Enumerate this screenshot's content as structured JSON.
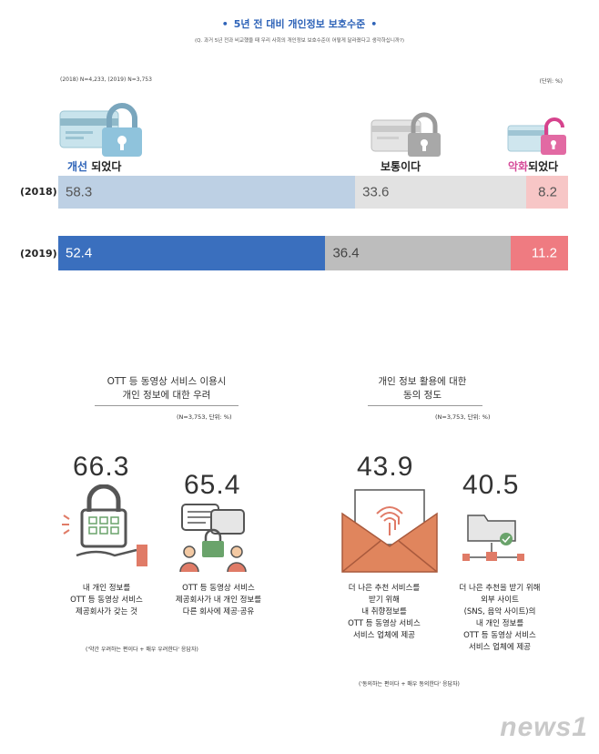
{
  "header": {
    "title": "5년 전 대비 개인정보 보호수준",
    "subtitle": "(Q. 과거 5년 전과 비교했을 때 우리 사회의 개인정보 보호수준이 어떻게 달라졌다고 생각하십니까?)",
    "sample_note": "(2018) N=4,233, (2019) N=3,753",
    "unit_note": "(단위: %)"
  },
  "labels": {
    "improved_hl": "개선",
    "improved_rest": " 되었다",
    "same": "보통이다",
    "worse_hl": "악화",
    "worse_rest": "되었다"
  },
  "chart_data": [
    {
      "type": "bar",
      "orientation": "horizontal-stacked-100",
      "title": "5년 전 대비 개인정보 보호수준",
      "categories": [
        "(2018)",
        "(2019)"
      ],
      "series": [
        {
          "name": "개선 되었다",
          "values": [
            58.3,
            52.4
          ]
        },
        {
          "name": "보통이다",
          "values": [
            33.6,
            36.4
          ]
        },
        {
          "name": "악화되었다",
          "values": [
            8.2,
            11.2
          ]
        }
      ],
      "unit": "%"
    },
    {
      "type": "bar",
      "title": "OTT 등 동영상 서비스 이용시 개인 정보에 대한 우려",
      "categories": [
        "내 개인 정보를 OTT 등 동영상 서비스 제공회사가 갖는 것",
        "OTT 등 동영상 서비스 제공회사가 내 개인 정보를 다른 회사에 제공·공유"
      ],
      "values": [
        66.3,
        65.4
      ]
    },
    {
      "type": "bar",
      "title": "개인 정보 활용에 대한 동의 정도",
      "categories": [
        "더 나은 추천 서비스를 받기 위해 내 취향정보를 OTT 등 동영상 서비스 서비스 업체에 제공",
        "더 나은 추천을 받기 위해 외부 사이트 (SNS, 음악 사이트)의 내 개인 정보를 OTT 등 동영상 서비스 서비스 업체에 제공"
      ],
      "values": [
        43.9,
        40.5
      ]
    }
  ],
  "bars": [
    {
      "year": "(2018)",
      "v1": "58.3",
      "v2": "33.6",
      "v3": "8.2"
    },
    {
      "year": "(2019)",
      "v1": "52.4",
      "v2": "36.4",
      "v3": "11.2"
    }
  ],
  "colors": {
    "r2018": [
      "#bdd0e4",
      "#e2e2e2",
      "#f7c6c6"
    ],
    "r2019": [
      "#3a6fbe",
      "#bdbdbd",
      "#ef7b81"
    ]
  },
  "left_section": {
    "title_line1": "OTT 등 동영상 서비스 이용시",
    "title_line2": "개인 정보에 대한 우려",
    "note": "(N=3,753, 단위: %)",
    "item1": {
      "value": "66.3",
      "l1": "내 개인 정보를",
      "l2": "OTT 등 동영상 서비스",
      "l3": "제공회사가 갖는 것"
    },
    "item2": {
      "value": "65.4",
      "l1": "OTT 등 동영상 서비스",
      "l2": "제공회사가 내 개인 정보를",
      "l3": "다른 회사에 제공·공유"
    },
    "footnote": "('약간 우려하는 편이다 + 매우 우려한다' 응답자)"
  },
  "right_section": {
    "title_line1": "개인 정보 활용에 대한",
    "title_line2": "동의 정도",
    "note": "(N=3,753, 단위: %)",
    "item1": {
      "value": "43.9",
      "l1": "더 나은 추천 서비스를",
      "l2": "받기 위해",
      "l3": "내 취향정보를",
      "l4": "OTT 등 동영상 서비스",
      "l5": "서비스 업체에 제공"
    },
    "item2": {
      "value": "40.5",
      "l1": "더 나은 추천을 받기 위해",
      "l2": "외부 사이트",
      "l3": "(SNS, 음악 사이트)의",
      "l4": "내 개인 정보를",
      "l5": "OTT 등 동영상 서비스",
      "l6": "서비스 업체에 제공"
    },
    "footnote": "('동의하는 편이다 + 매우 동의한다' 응답자)"
  },
  "watermark": "news1"
}
